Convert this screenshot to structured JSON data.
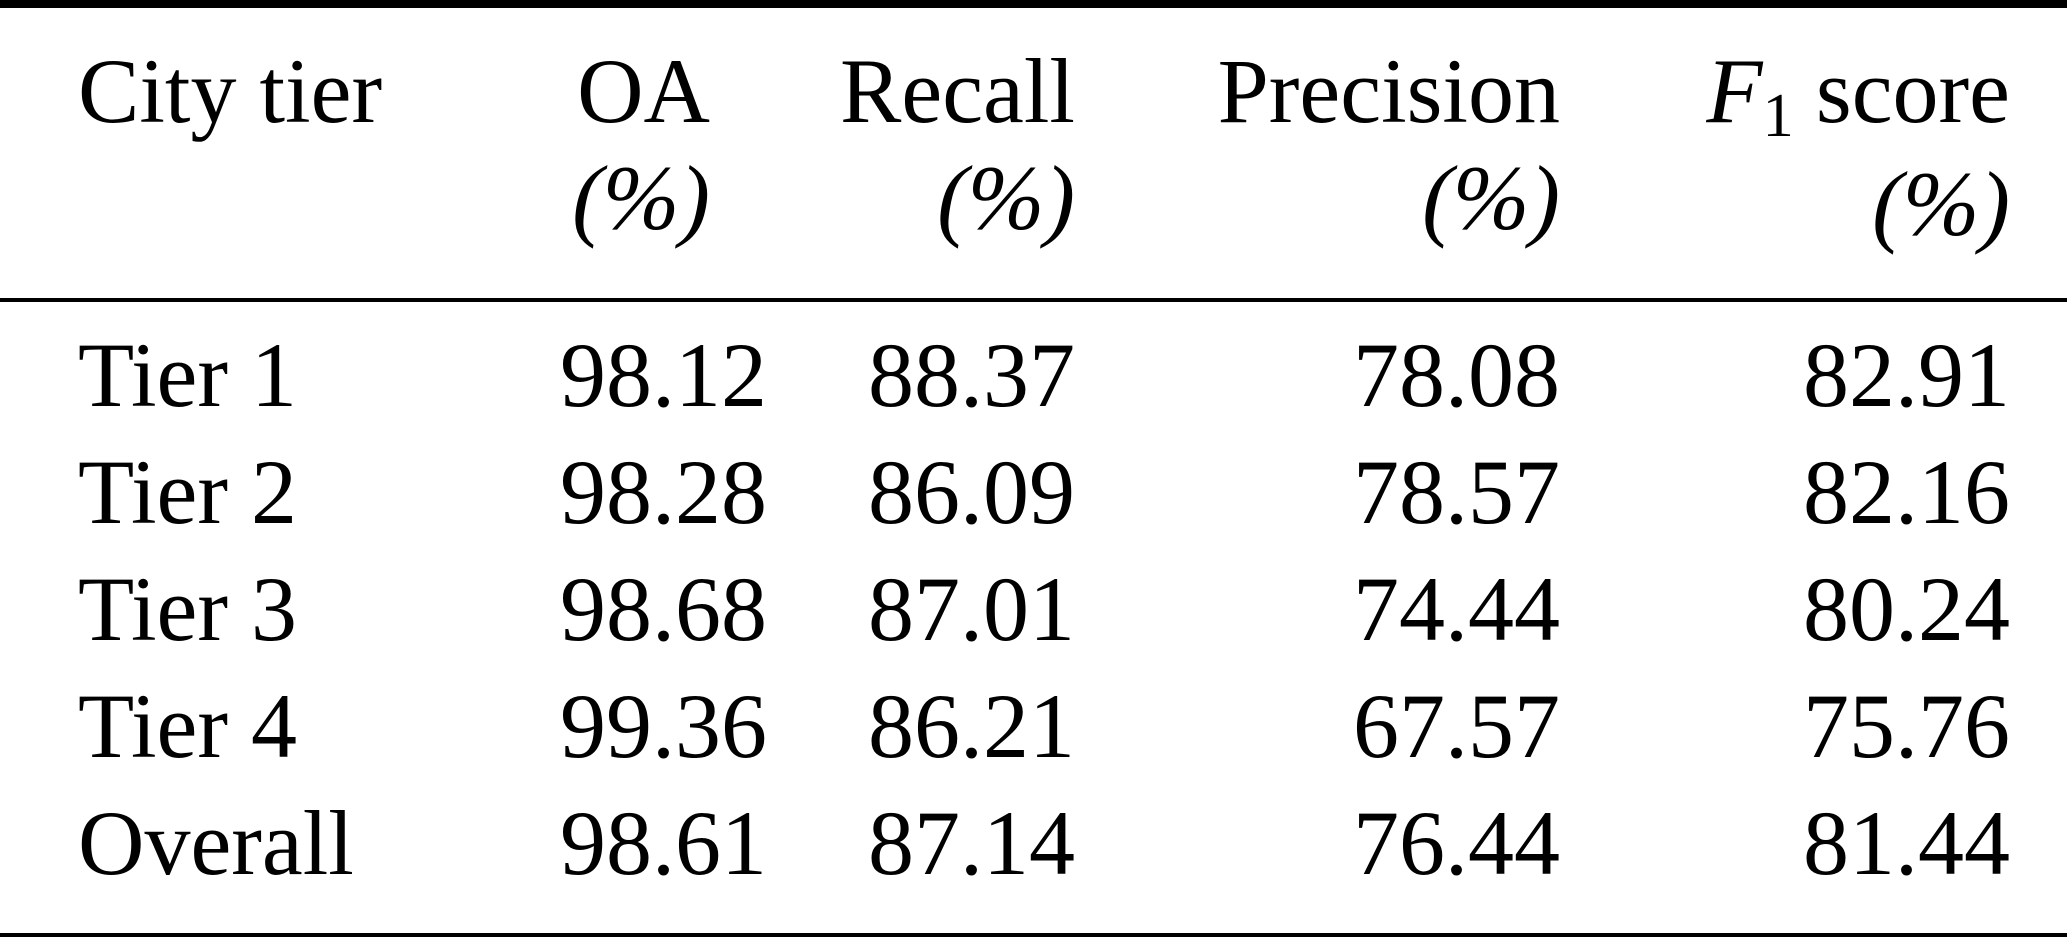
{
  "table": {
    "header": {
      "city_tier": "City tier",
      "oa": "OA",
      "recall": "Recall",
      "precision": "Precision",
      "f1_letter": "F",
      "f1_sub": "1",
      "f1_rest": "score",
      "unit_percent": "(%)"
    },
    "rows": [
      [
        "Tier 1",
        "98.12",
        "88.37",
        "78.08",
        "82.91"
      ],
      [
        "Tier 2",
        "98.28",
        "86.09",
        "78.57",
        "82.16"
      ],
      [
        "Tier 3",
        "98.68",
        "87.01",
        "74.44",
        "80.24"
      ],
      [
        "Tier 4",
        "99.36",
        "86.21",
        "67.57",
        "75.76"
      ],
      [
        "Overall",
        "98.61",
        "87.14",
        "76.44",
        "81.44"
      ]
    ]
  },
  "chart_data": {
    "type": "table",
    "title": "",
    "columns": [
      "City tier",
      "OA (%)",
      "Recall (%)",
      "Precision (%)",
      "F1 score (%)"
    ],
    "rows": [
      [
        "Tier 1",
        98.12,
        88.37,
        78.08,
        82.91
      ],
      [
        "Tier 2",
        98.28,
        86.09,
        78.57,
        82.16
      ],
      [
        "Tier 3",
        98.68,
        87.01,
        74.44,
        80.24
      ],
      [
        "Tier 4",
        99.36,
        86.21,
        67.57,
        75.76
      ],
      [
        "Overall",
        98.61,
        87.14,
        76.44,
        81.44
      ]
    ]
  },
  "colors": {
    "text": "#000000",
    "background": "#ffffff",
    "rule": "#000000"
  }
}
